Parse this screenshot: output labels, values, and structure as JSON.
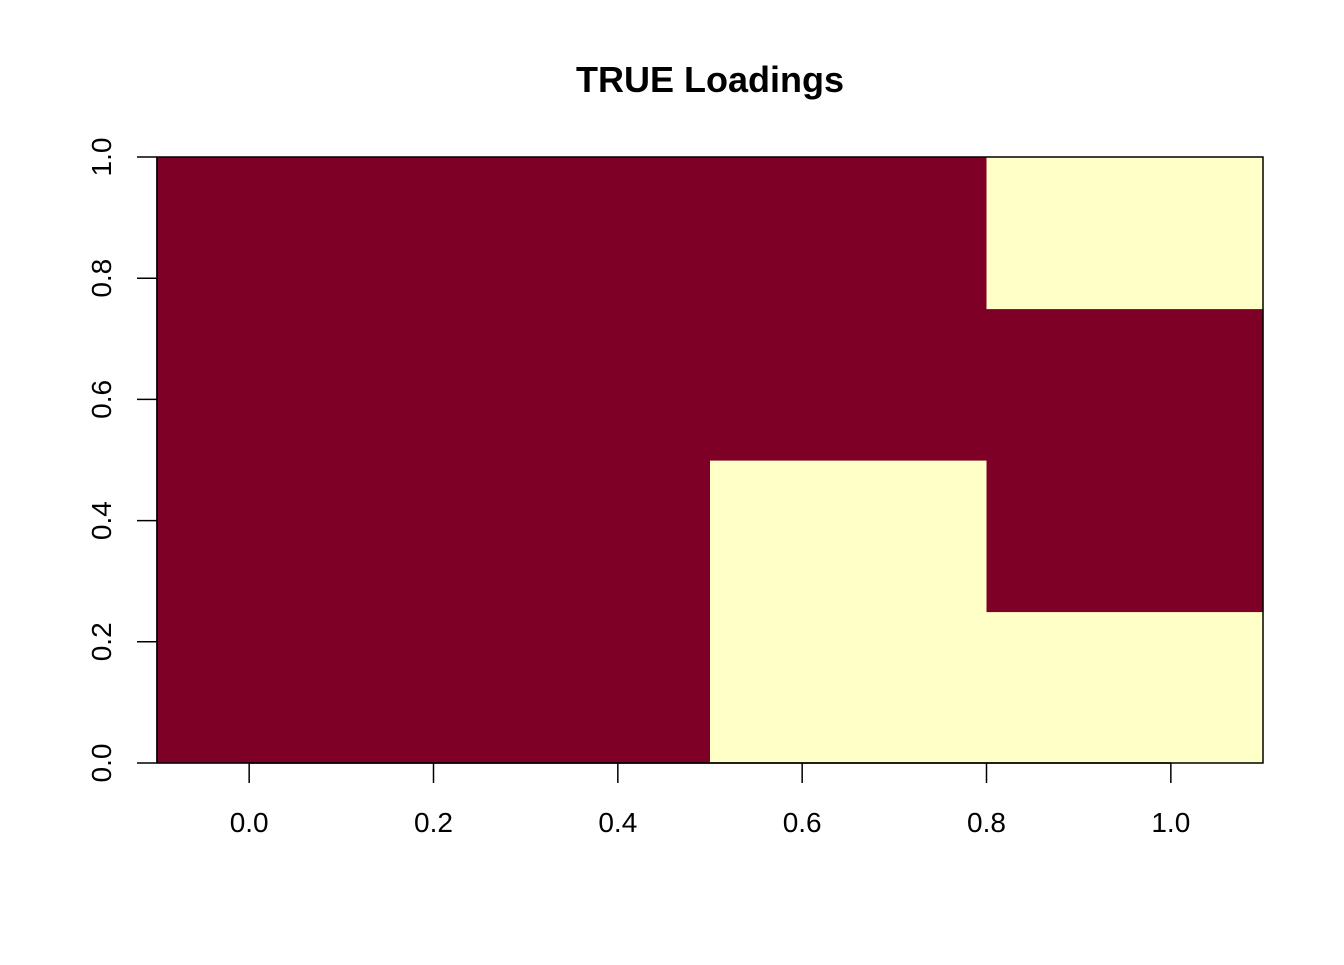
{
  "chart_data": {
    "type": "heatmap",
    "title": "TRUE Loadings",
    "xlabel": "",
    "ylabel": "",
    "x_ticks": [
      "0.0",
      "0.2",
      "0.4",
      "0.6",
      "0.8",
      "1.0"
    ],
    "y_ticks": [
      "0.0",
      "0.2",
      "0.4",
      "0.6",
      "0.8",
      "1.0"
    ],
    "xlim": [
      -0.1,
      1.1
    ],
    "ylim": [
      0,
      1
    ],
    "colors": {
      "high": "#7f0026",
      "low": "#ffffc8"
    },
    "x_bins": [
      -0.1,
      0.2,
      0.5,
      0.8,
      1.1
    ],
    "y_bins": [
      0,
      0.25,
      0.5,
      0.75,
      1
    ],
    "values": [
      [
        1,
        1,
        1,
        1
      ],
      [
        1,
        1,
        1,
        1
      ],
      [
        0,
        0,
        1,
        1
      ],
      [
        0,
        1,
        1,
        0
      ]
    ]
  }
}
